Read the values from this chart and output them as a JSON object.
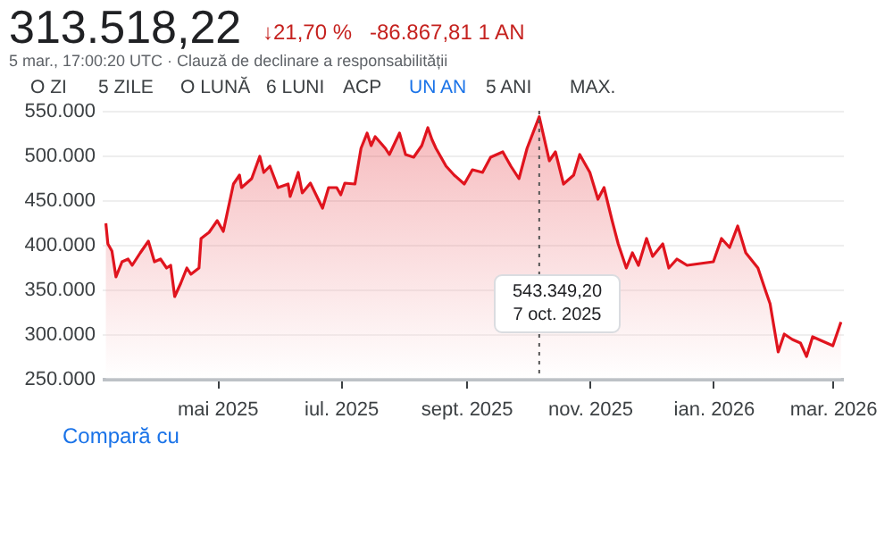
{
  "chart_data": {
    "type": "area",
    "title": "313.518,22",
    "subtitle": "5 mar., 17:00:20 UTC · Clauză de declinare a responsabilității",
    "annotations": [
      "↓21,70 %",
      "-86.867,81 1 AN",
      "O ZI",
      "5 ZILE",
      "O LUNĂ",
      "6 LUNI",
      "ACP",
      "UN AN",
      "5 ANI",
      "MAX.",
      "Compară cu",
      "543.349,20\n7 oct. 2025"
    ],
    "x": [
      "2025-03-07",
      "2025-03-08",
      "2025-03-10",
      "2025-03-12",
      "2025-03-15",
      "2025-03-18",
      "2025-03-20",
      "2025-03-24",
      "2025-03-28",
      "2025-03-31",
      "2025-04-03",
      "2025-04-06",
      "2025-04-08",
      "2025-04-10",
      "2025-04-13",
      "2025-04-16",
      "2025-04-18",
      "2025-04-22",
      "2025-04-23",
      "2025-04-27",
      "2025-05-01",
      "2025-05-04",
      "2025-05-09",
      "2025-05-12",
      "2025-05-13",
      "2025-05-18",
      "2025-05-22",
      "2025-05-24",
      "2025-05-27",
      "2025-05-31",
      "2025-06-05",
      "2025-06-06",
      "2025-06-10",
      "2025-06-12",
      "2025-06-16",
      "2025-06-22",
      "2025-06-25",
      "2025-06-29",
      "2025-07-01",
      "2025-07-03",
      "2025-07-08",
      "2025-07-11",
      "2025-07-14",
      "2025-07-16",
      "2025-07-18",
      "2025-07-23",
      "2025-07-25",
      "2025-07-30",
      "2025-08-02",
      "2025-08-06",
      "2025-08-10",
      "2025-08-13",
      "2025-08-15",
      "2025-08-17",
      "2025-08-22",
      "2025-08-26",
      "2025-08-31",
      "2025-09-04",
      "2025-09-09",
      "2025-09-13",
      "2025-09-19",
      "2025-09-23",
      "2025-09-27",
      "2025-10-01",
      "2025-10-07",
      "2025-10-12",
      "2025-10-15",
      "2025-10-19",
      "2025-10-24",
      "2025-10-27",
      "2025-11-01",
      "2025-11-05",
      "2025-11-08",
      "2025-11-12",
      "2025-11-15",
      "2025-11-19",
      "2025-11-22",
      "2025-11-25",
      "2025-11-29",
      "2025-12-02",
      "2025-12-07",
      "2025-12-10",
      "2025-12-14",
      "2025-12-19",
      "2026-01-01",
      "2026-01-05",
      "2026-01-09",
      "2026-01-13",
      "2026-01-17",
      "2026-01-23",
      "2026-01-27",
      "2026-01-29",
      "2026-02-02",
      "2026-02-05",
      "2026-02-09",
      "2026-02-13",
      "2026-02-16",
      "2026-02-19",
      "2026-03-01",
      "2026-03-05"
    ],
    "series": [
      {
        "color": "#e0141e",
        "values": [
          424000,
          401000,
          393000,
          364000,
          381000,
          384000,
          377000,
          391000,
          404000,
          381000,
          384000,
          374000,
          377000,
          342000,
          357000,
          374000,
          367000,
          374000,
          407000,
          414000,
          427000,
          415000,
          468000,
          478000,
          464000,
          474000,
          499000,
          481000,
          488000,
          464000,
          468000,
          454000,
          481000,
          458000,
          469000,
          441000,
          464000,
          464000,
          456000,
          469000,
          468000,
          508000,
          525000,
          511000,
          521000,
          508000,
          501000,
          525000,
          501000,
          498000,
          511000,
          531000,
          518000,
          508000,
          488000,
          478000,
          468000,
          484000,
          481000,
          498000,
          504000,
          488000,
          474000,
          508000,
          543349.2,
          494000,
          504000,
          468000,
          478000,
          501000,
          481000,
          451000,
          464000,
          427000,
          401000,
          374000,
          391000,
          377000,
          407000,
          387000,
          401000,
          374000,
          384000,
          377000,
          381000,
          407000,
          397000,
          421000,
          391000,
          374000,
          347000,
          334000,
          280000,
          300000,
          294000,
          290000,
          275000,
          297000,
          287000,
          313518.22
        ]
      }
    ],
    "xlim": [
      "2025-03-05",
      "2026-03-06"
    ],
    "xticks": [
      {
        "value": "2025-05-01",
        "label": "mai 2025"
      },
      {
        "value": "2025-07-01",
        "label": "iul. 2025"
      },
      {
        "value": "2025-09-01",
        "label": "sept. 2025"
      },
      {
        "value": "2025-11-01",
        "label": "nov. 2025"
      },
      {
        "value": "2026-01-01",
        "label": "ian. 2026"
      },
      {
        "value": "2026-03-01",
        "label": "mar. 2026"
      }
    ],
    "ylim": [
      250000,
      550000
    ],
    "yticks": [
      {
        "value": 250000,
        "label": "250.000"
      },
      {
        "value": 300000,
        "label": "300.000"
      },
      {
        "value": 350000,
        "label": "350.000"
      },
      {
        "value": 400000,
        "label": "400.000"
      },
      {
        "value": 450000,
        "label": "450.000"
      },
      {
        "value": 500000,
        "label": "500.000"
      },
      {
        "value": 550000,
        "label": "550.000"
      }
    ],
    "ref_lines": [
      {
        "axis": "x",
        "value": "2025-10-07",
        "line_style": "dotted",
        "color": "#555555"
      }
    ],
    "grid": "y"
  }
}
